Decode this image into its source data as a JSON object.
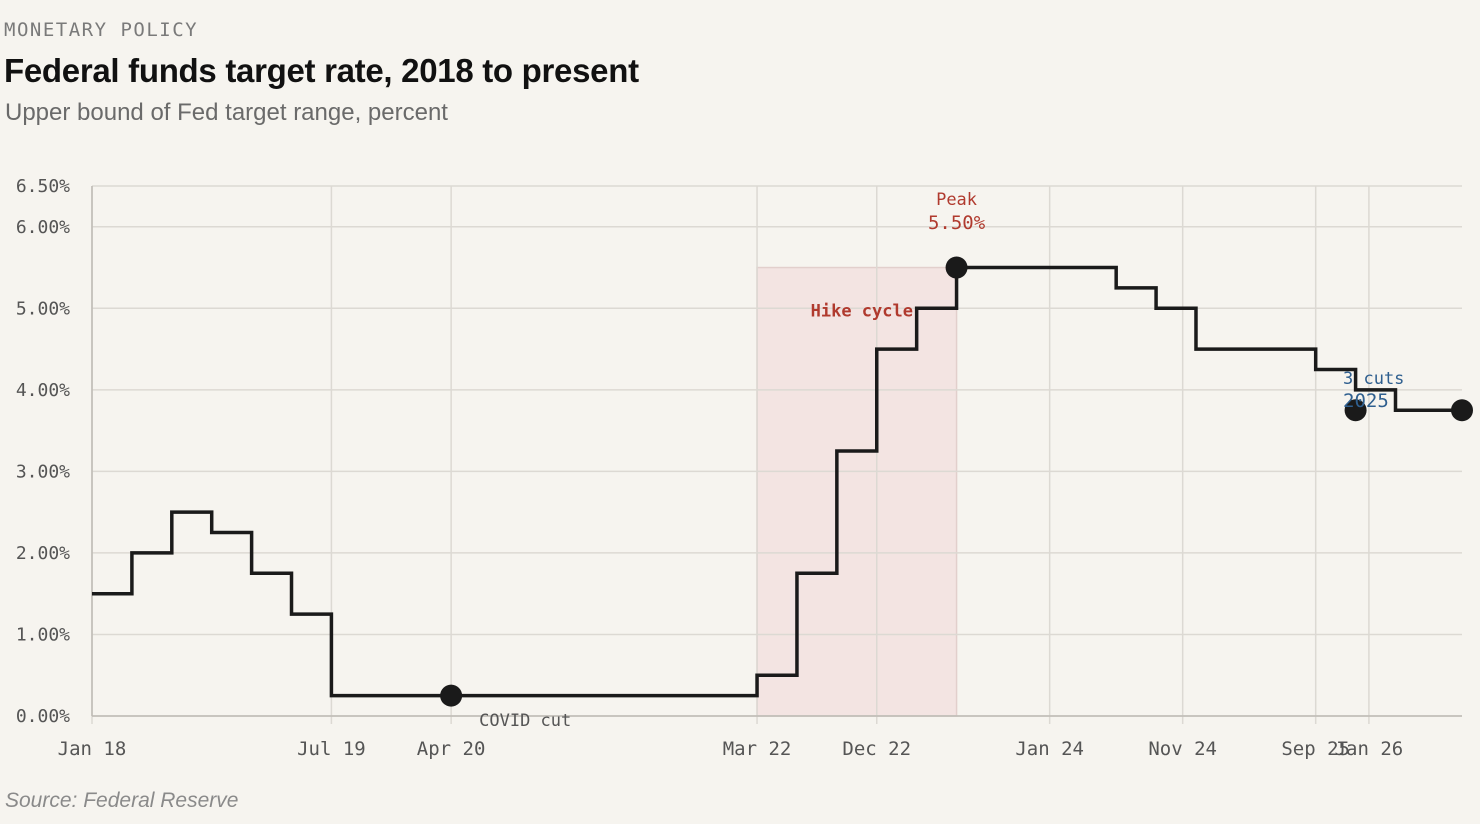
{
  "header": {
    "eyebrow": "MONETARY POLICY",
    "title": "Federal funds target rate, 2018 to present",
    "subtitle": "Upper bound of Fed target range, percent"
  },
  "footer": {
    "source": "Source: Federal Reserve"
  },
  "colors": {
    "line": "#1a1a1a",
    "grid": "#dcd9d3",
    "peak": "#b03a2e",
    "cuts": "#2f5f8f",
    "shade": "#f3e4e2",
    "tick_text": "#555555"
  },
  "chart_data": {
    "type": "line",
    "step": true,
    "xlim": [
      "2018-01-01",
      "2026-08-01"
    ],
    "ylim": [
      0,
      6.5
    ],
    "y_ticks": [
      0,
      1,
      2,
      3,
      4,
      5,
      6,
      6.5
    ],
    "y_tick_labels": [
      "0.00%",
      "1.00%",
      "2.00%",
      "3.00%",
      "4.00%",
      "5.00%",
      "6.00%",
      "6.50%"
    ],
    "x_ticks": [
      "2018-01-01",
      "2019-07-01",
      "2020-04-01",
      "2022-03-01",
      "2022-12-01",
      "2024-01-01",
      "2024-11-01",
      "2025-09-01",
      "2026-01-01"
    ],
    "x_tick_labels": [
      "Jan 18",
      "Jul 19",
      "Apr 20",
      "Mar 22",
      "Dec 22",
      "Jan 24",
      "Nov 24",
      "Sep 25",
      "Jan 26"
    ],
    "grid": true,
    "series": [
      {
        "dates": [
          "2018-01-01",
          "2018-04-01",
          "2018-07-01",
          "2018-10-01",
          "2019-01-01",
          "2019-04-01",
          "2019-07-01",
          "2019-10-01",
          "2020-01-01",
          "2020-04-01",
          "2020-07-01",
          "2020-10-01",
          "2021-01-01",
          "2021-04-01",
          "2021-07-01",
          "2021-10-01",
          "2022-01-01",
          "2022-03-01",
          "2022-06-01",
          "2022-09-01",
          "2022-12-01",
          "2023-03-01",
          "2023-06-01",
          "2023-09-01",
          "2023-12-01",
          "2024-03-01",
          "2024-06-01",
          "2024-09-01",
          "2024-12-01",
          "2025-03-01",
          "2025-06-01",
          "2025-09-01",
          "2025-12-01",
          "2026-03-01",
          "2026-08-01"
        ],
        "values": [
          1.5,
          2.0,
          2.5,
          2.25,
          1.75,
          1.25,
          0.25,
          0.25,
          0.25,
          0.25,
          0.25,
          0.25,
          0.25,
          0.25,
          0.25,
          0.25,
          0.25,
          0.5,
          1.75,
          3.25,
          4.5,
          5.0,
          5.5,
          5.5,
          5.5,
          5.5,
          5.25,
          5.0,
          4.5,
          4.5,
          4.5,
          4.25,
          4.0,
          3.75,
          3.75
        ]
      }
    ],
    "highlight_range": {
      "label": "Hike cycle",
      "x": [
        "2022-03-01",
        "2023-06-01"
      ],
      "y": [
        0,
        5.5
      ]
    },
    "annotations": [
      {
        "label": "COVID cut",
        "x": "2020-04-01",
        "y": 0.25
      },
      {
        "label": "Peak",
        "value_label": "5.50%",
        "x": "2023-06-01",
        "y": 5.5
      },
      {
        "label": "3 cuts",
        "value_label": "2025",
        "x": "2025-12-01",
        "y": 3.75
      },
      {
        "label": "",
        "x": "2026-08-01",
        "y": 3.75
      }
    ]
  }
}
